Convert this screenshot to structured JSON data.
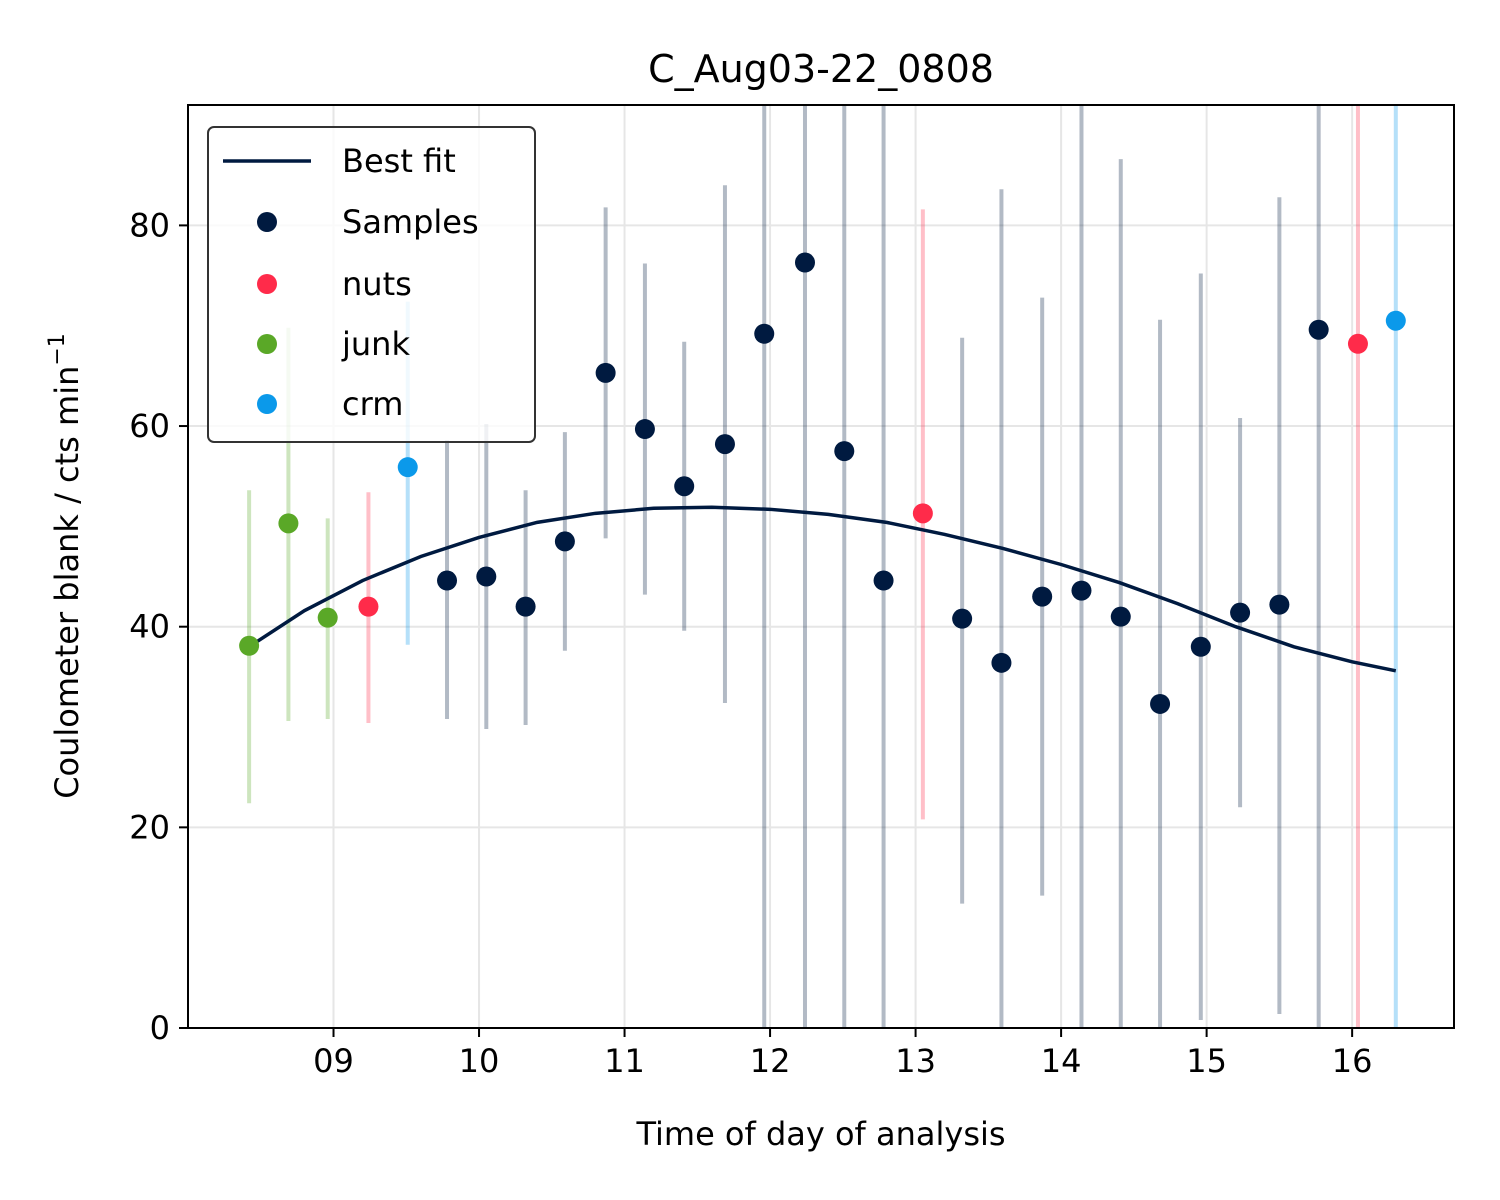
{
  "chart_data": {
    "type": "scatter",
    "title": "C_Aug03-22_0808",
    "xlabel": "Time of day of analysis",
    "ylabel": "Coulometer blank / cts min",
    "ylabel_superscript": "−1",
    "xlim": [
      8.0,
      16.7
    ],
    "ylim": [
      0,
      92
    ],
    "x_ticks": [
      9,
      10,
      11,
      12,
      13,
      14,
      15,
      16
    ],
    "x_tick_labels": [
      "09",
      "10",
      "11",
      "12",
      "13",
      "14",
      "15",
      "16"
    ],
    "y_ticks": [
      0,
      20,
      40,
      60,
      80
    ],
    "y_tick_labels": [
      "0",
      "20",
      "40",
      "60",
      "80"
    ],
    "grid": true,
    "legend_position": "upper-left",
    "legend": [
      "Best fit",
      "Samples",
      "nuts",
      "junk",
      "crm"
    ],
    "colors": {
      "Best fit": "#001a40",
      "Samples": "#001a40",
      "nuts": "#ff2b4a",
      "junk": "#5aa827",
      "crm": "#0b99ea"
    },
    "best_fit": {
      "name": "Best fit",
      "x": [
        8.42,
        8.8,
        9.2,
        9.6,
        10.0,
        10.4,
        10.8,
        11.2,
        11.6,
        12.0,
        12.4,
        12.8,
        13.2,
        13.6,
        14.0,
        14.4,
        14.8,
        15.2,
        15.6,
        16.0,
        16.3
      ],
      "y": [
        38.0,
        41.6,
        44.6,
        47.0,
        48.9,
        50.4,
        51.3,
        51.8,
        51.9,
        51.7,
        51.2,
        50.4,
        49.2,
        47.8,
        46.2,
        44.4,
        42.3,
        40.0,
        38.0,
        36.5,
        35.6
      ]
    },
    "series": [
      {
        "name": "Samples",
        "x": [
          9.78,
          10.05,
          10.32,
          10.59,
          10.87,
          11.14,
          11.41,
          11.69,
          11.96,
          12.24,
          12.51,
          12.78,
          13.32,
          13.59,
          13.87,
          14.14,
          14.41,
          14.68,
          14.96,
          15.23,
          15.5,
          15.77
        ],
        "y": [
          44.6,
          45.0,
          42.0,
          48.5,
          65.3,
          59.7,
          54.0,
          58.2,
          69.2,
          76.3,
          57.5,
          44.6,
          40.8,
          36.4,
          43.0,
          43.6,
          41.0,
          32.3,
          38.0,
          41.4,
          42.2,
          69.6
        ],
        "err_low": [
          30.8,
          29.8,
          30.2,
          37.6,
          48.8,
          43.2,
          39.6,
          32.4,
          0,
          0,
          0,
          0,
          12.4,
          0,
          13.2,
          0,
          0,
          0,
          0.8,
          22.0,
          1.4,
          0
        ],
        "err_high": [
          58.6,
          60.2,
          53.6,
          59.4,
          81.8,
          76.2,
          68.4,
          84.0,
          92,
          92,
          92,
          92,
          68.8,
          83.6,
          72.8,
          92,
          86.6,
          70.6,
          75.2,
          60.8,
          82.8,
          92
        ]
      },
      {
        "name": "nuts",
        "x": [
          9.24,
          13.05,
          16.04
        ],
        "y": [
          42.0,
          51.3,
          68.2
        ],
        "err_low": [
          30.4,
          20.8,
          0
        ],
        "err_high": [
          53.4,
          81.6,
          92
        ]
      },
      {
        "name": "junk",
        "x": [
          8.42,
          8.69,
          8.96
        ],
        "y": [
          38.1,
          50.3,
          40.9
        ],
        "err_low": [
          22.4,
          30.6,
          30.8
        ],
        "err_high": [
          53.6,
          69.8,
          50.8
        ]
      },
      {
        "name": "crm",
        "x": [
          9.51,
          16.3
        ],
        "y": [
          55.9,
          70.5
        ],
        "err_low": [
          38.2,
          0
        ],
        "err_high": [
          72.4,
          92
        ]
      }
    ]
  }
}
